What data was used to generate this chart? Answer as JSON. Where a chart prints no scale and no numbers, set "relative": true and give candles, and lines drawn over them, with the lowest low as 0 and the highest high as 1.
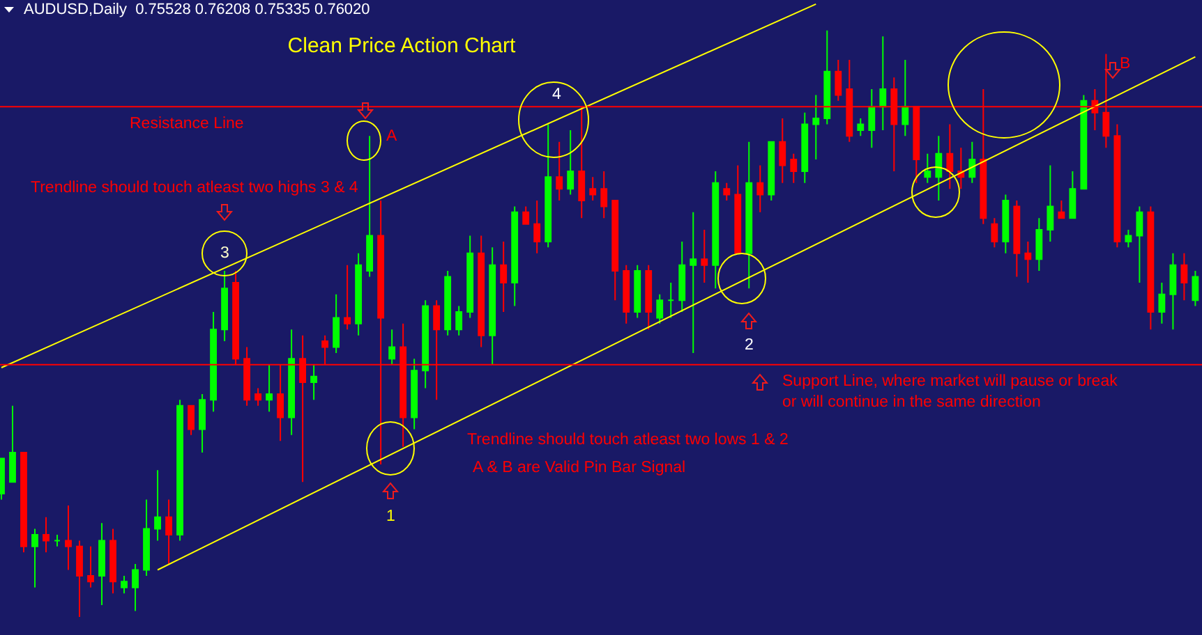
{
  "chart_data": {
    "type": "candlestick",
    "relative": true,
    "title": "Clean Price Action Chart",
    "subtitle": "AUDUSD,Daily  0.75528 0.76208 0.75335 0.76020",
    "annotations": [
      "Trendline should touch atleast two highs 3 & 4",
      "Trendline should touch atleast two lows 1 & 2",
      "A & B are Valid Pin Bar Signal",
      "3",
      "4",
      "A",
      "B",
      "1",
      "2"
    ],
    "colors": [
      "#00ff00",
      "#00ff00",
      "#ff0000",
      "#00ff00",
      "#ff0000",
      "#00ff00",
      "#ff0000",
      "#ff0000",
      "#ff0000",
      "#00ff00",
      "#ff0000",
      "#00ff00",
      "#00ff00",
      "#00ff00",
      "#00ff00",
      "#ff0000",
      "#00ff00",
      "#ff0000",
      "#00ff00",
      "#00ff00",
      "#00ff00",
      "#ff0000",
      "#ff0000",
      "#ff0000",
      "#00ff00",
      "#ff0000",
      "#00ff00",
      "#ff0000",
      "#00ff00",
      "#ff0000",
      "#00ff00",
      "#ff0000",
      "#00ff00",
      "#00ff00",
      "#ff0000",
      "#00ff00",
      "#ff0000",
      "#00ff00",
      "#00ff00",
      "#ff0000",
      "#00ff00",
      "#00ff00",
      "#00ff00",
      "#ff0000",
      "#00ff00",
      "#ff0000",
      "#00ff00",
      "#ff0000",
      "#ff0000",
      "#00ff00",
      "#ff0000",
      "#00ff00",
      "#ff0000",
      "#ff0000",
      "#ff0000",
      "#ff0000",
      "#ff0000",
      "#00ff00",
      "#ff0000",
      "#00ff00",
      "#00ff00",
      "#00ff00",
      "#00ff00",
      "#ff0000",
      "#00ff00",
      "#ff0000",
      "#ff0000",
      "#00ff00",
      "#ff0000",
      "#00ff00",
      "#ff0000",
      "#ff0000",
      "#00ff00",
      "#00ff00",
      "#00ff00",
      "#ff0000",
      "#ff0000",
      "#00ff00",
      "#00ff00",
      "#00ff00",
      "#ff0000",
      "#00ff00",
      "#ff0000",
      "#00ff00",
      "#00ff00",
      "#ff0000",
      "#ff0000",
      "#00ff00",
      "#ff0000",
      "#ff0000",
      "#00ff00",
      "#ff0000",
      "#ff0000",
      "#00ff00",
      "#00ff00",
      "#ff0000",
      "#00ff00",
      "#00ff00",
      "#ff0000",
      "#ff0000",
      "#ff0000",
      "#00ff00",
      "#00ff00",
      "#ff0000",
      "#00ff00",
      "#00ff00",
      "#ff0000",
      "#00ff00"
    ],
    "categories": [
      null,
      null,
      null,
      null,
      null,
      null,
      null,
      null,
      null,
      null,
      null,
      null,
      null,
      null,
      null,
      null,
      null,
      null,
      null,
      null,
      null,
      null,
      null,
      null,
      null,
      null,
      null,
      null,
      null,
      null,
      null,
      null,
      null,
      null,
      null,
      null,
      null,
      null,
      null,
      null,
      null,
      null,
      null,
      null,
      null,
      null,
      null,
      null,
      null,
      null,
      null,
      null,
      null,
      null,
      null,
      null,
      null,
      null,
      null,
      null,
      null,
      null,
      null,
      null,
      null,
      null,
      null,
      null,
      null,
      null,
      null,
      null,
      null,
      null,
      null,
      null,
      null,
      null,
      null,
      null,
      null,
      null,
      null,
      null,
      null,
      null,
      null,
      null,
      null,
      null,
      null,
      null,
      null,
      null,
      null,
      null,
      null,
      null,
      null,
      null,
      null,
      null,
      null,
      null,
      null,
      null,
      null,
      null
    ],
    "ohlc": [
      [
        0.21,
        0.27,
        0.2,
        0.27
      ],
      [
        0.23,
        0.36,
        0.23,
        0.28
      ],
      [
        0.28,
        0.28,
        0.11,
        0.12
      ],
      [
        0.12,
        0.15,
        0.05,
        0.14
      ],
      [
        0.14,
        0.17,
        0.11,
        0.13
      ],
      [
        0.13,
        0.14,
        0.12,
        0.13
      ],
      [
        0.13,
        0.19,
        0.08,
        0.12
      ],
      [
        0.12,
        0.13,
        0,
        0.07
      ],
      [
        0.07,
        0.12,
        0.05,
        0.06
      ],
      [
        0.07,
        0.16,
        0.02,
        0.13
      ],
      [
        0.13,
        0.15,
        0.04,
        0.06
      ],
      [
        0.05,
        0.07,
        0.04,
        0.06
      ],
      [
        0.05,
        0.09,
        0.01,
        0.08
      ],
      [
        0.08,
        0.2,
        0.07,
        0.15
      ],
      [
        0.15,
        0.25,
        0.13,
        0.17
      ],
      [
        0.17,
        0.2,
        0.09,
        0.14
      ],
      [
        0.14,
        0.37,
        0.13,
        0.36
      ],
      [
        0.36,
        0.36,
        0.31,
        0.32
      ],
      [
        0.32,
        0.38,
        0.28,
        0.37
      ],
      [
        0.37,
        0.52,
        0.35,
        0.49
      ],
      [
        0.49,
        0.59,
        0.47,
        0.56
      ],
      [
        0.57,
        0.59,
        0.43,
        0.44
      ],
      [
        0.44,
        0.46,
        0.36,
        0.37
      ],
      [
        0.38,
        0.39,
        0.36,
        0.37
      ],
      [
        0.37,
        0.43,
        0.35,
        0.38
      ],
      [
        0.38,
        0.43,
        0.3,
        0.34
      ],
      [
        0.34,
        0.49,
        0.31,
        0.44
      ],
      [
        0.44,
        0.48,
        0.23,
        0.4
      ],
      [
        0.4,
        0.43,
        0.37,
        0.41
      ],
      [
        0.47,
        0.48,
        0.43,
        0.46
      ],
      [
        0.46,
        0.55,
        0.45,
        0.51
      ],
      [
        0.51,
        0.6,
        0.49,
        0.5
      ],
      [
        0.5,
        0.62,
        0.48,
        0.6
      ],
      [
        0.59,
        0.82,
        0.58,
        0.65
      ],
      [
        0.65,
        0.71,
        0.26,
        0.51
      ],
      [
        0.44,
        0.49,
        0.43,
        0.46
      ],
      [
        0.46,
        0.5,
        0.29,
        0.34
      ],
      [
        0.34,
        0.44,
        0.32,
        0.42
      ],
      [
        0.42,
        0.54,
        0.39,
        0.53
      ],
      [
        0.53,
        0.54,
        0.37,
        0.49
      ],
      [
        0.49,
        0.59,
        0.48,
        0.58
      ],
      [
        0.49,
        0.53,
        0.48,
        0.52
      ],
      [
        0.52,
        0.65,
        0.51,
        0.62
      ],
      [
        0.62,
        0.65,
        0.46,
        0.48
      ],
      [
        0.48,
        0.63,
        0.43,
        0.6
      ],
      [
        0.6,
        0.64,
        0.52,
        0.57
      ],
      [
        0.57,
        0.7,
        0.53,
        0.69
      ],
      [
        0.69,
        0.7,
        0.67,
        0.67
      ],
      [
        0.67,
        0.71,
        0.62,
        0.64
      ],
      [
        0.64,
        0.84,
        0.63,
        0.75
      ],
      [
        0.75,
        0.81,
        0.71,
        0.73
      ],
      [
        0.73,
        0.83,
        0.72,
        0.76
      ],
      [
        0.76,
        0.87,
        0.68,
        0.71
      ],
      [
        0.73,
        0.75,
        0.71,
        0.72
      ],
      [
        0.73,
        0.76,
        0.68,
        0.7
      ],
      [
        0.71,
        0.71,
        0.54,
        0.59
      ],
      [
        0.59,
        0.6,
        0.5,
        0.52
      ],
      [
        0.52,
        0.6,
        0.51,
        0.59
      ],
      [
        0.59,
        0.6,
        0.49,
        0.52
      ],
      [
        0.51,
        0.55,
        0.5,
        0.54
      ],
      [
        0.54,
        0.57,
        0.51,
        0.54
      ],
      [
        0.54,
        0.64,
        0.52,
        0.6
      ],
      [
        0.6,
        0.69,
        0.45,
        0.61
      ],
      [
        0.61,
        0.66,
        0.57,
        0.6
      ],
      [
        0.6,
        0.76,
        0.56,
        0.74
      ],
      [
        0.73,
        0.74,
        0.71,
        0.72
      ],
      [
        0.72,
        0.77,
        0.62,
        0.62
      ],
      [
        0.62,
        0.81,
        0.56,
        0.74
      ],
      [
        0.74,
        0.77,
        0.69,
        0.72
      ],
      [
        0.72,
        0.81,
        0.71,
        0.81
      ],
      [
        0.81,
        0.85,
        0.74,
        0.77
      ],
      [
        0.78,
        0.79,
        0.74,
        0.76
      ],
      [
        0.76,
        0.86,
        0.74,
        0.84
      ],
      [
        0.84,
        0.89,
        0.78,
        0.85
      ],
      [
        0.85,
        1,
        0.84,
        0.93
      ],
      [
        0.93,
        0.95,
        0.88,
        0.89
      ],
      [
        0.9,
        0.95,
        0.81,
        0.82
      ],
      [
        0.83,
        0.85,
        0.82,
        0.84
      ],
      [
        0.83,
        0.9,
        0.8,
        0.87
      ],
      [
        0.87,
        0.99,
        0.83,
        0.9
      ],
      [
        0.9,
        0.92,
        0.76,
        0.84
      ],
      [
        0.84,
        0.95,
        0.82,
        0.87
      ],
      [
        0.87,
        0.87,
        0.74,
        0.78
      ],
      [
        0.75,
        0.79,
        0.74,
        0.76
      ],
      [
        0.75,
        0.82,
        0.71,
        0.79
      ],
      [
        0.79,
        0.84,
        0.73,
        0.76
      ],
      [
        0.76,
        0.8,
        0.73,
        0.75
      ],
      [
        0.75,
        0.81,
        0.74,
        0.78
      ],
      [
        0.78,
        0.9,
        0.67,
        0.68
      ],
      [
        0.67,
        0.68,
        0.63,
        0.64
      ],
      [
        0.64,
        0.72,
        0.62,
        0.71
      ],
      [
        0.7,
        0.71,
        0.58,
        0.62
      ],
      [
        0.62,
        0.64,
        0.57,
        0.61
      ],
      [
        0.61,
        0.68,
        0.59,
        0.66
      ],
      [
        0.66,
        0.77,
        0.64,
        0.7
      ],
      [
        0.69,
        0.71,
        0.68,
        0.68
      ],
      [
        0.68,
        0.76,
        0.68,
        0.73
      ],
      [
        0.73,
        0.89,
        0.73,
        0.88
      ],
      [
        0.88,
        0.9,
        0.83,
        0.86
      ],
      [
        0.86,
        0.96,
        0.8,
        0.82
      ],
      [
        0.82,
        0.84,
        0.63,
        0.64
      ],
      [
        0.64,
        0.66,
        0.63,
        0.65
      ],
      [
        0.65,
        0.7,
        0.57,
        0.69
      ],
      [
        0.69,
        0.7,
        0.49,
        0.52
      ],
      [
        0.52,
        0.57,
        0.5,
        0.55
      ],
      [
        0.55,
        0.62,
        0.49,
        0.6
      ],
      [
        0.6,
        0.62,
        0.54,
        0.57
      ],
      [
        0.54,
        0.59,
        0.53,
        0.58
      ]
    ],
    "series": [
      {
        "type": "line",
        "color": "#ffff00",
        "values": [
          0.425,
          null,
          null,
          null,
          null,
          null,
          null,
          null,
          null,
          null,
          null,
          null,
          null,
          null,
          null,
          null,
          null,
          null,
          null,
          null,
          null,
          null,
          null,
          null,
          null,
          null,
          null,
          null,
          null,
          null,
          null,
          null,
          null,
          null,
          null,
          null,
          null,
          null,
          null,
          null,
          null,
          null,
          null,
          null,
          null,
          null,
          null,
          null,
          null,
          null,
          null,
          null,
          null,
          null,
          null,
          null,
          null,
          null,
          null,
          null,
          null,
          null,
          null,
          null,
          null,
          null,
          null,
          null,
          null,
          null,
          null,
          null,
          null,
          1.045,
          null,
          null,
          null,
          null,
          null,
          null,
          null,
          null,
          null,
          null,
          null,
          null,
          null,
          null,
          null,
          null,
          null,
          null,
          null,
          null,
          null,
          null,
          null,
          null,
          null,
          null,
          null,
          null,
          null,
          null,
          null,
          null,
          null,
          null
        ]
      },
      {
        "type": "line",
        "color": "#ffff00",
        "values": [
          null,
          null,
          null,
          null,
          null,
          null,
          null,
          null,
          null,
          null,
          null,
          null,
          null,
          null,
          0.08,
          null,
          null,
          null,
          null,
          null,
          null,
          null,
          null,
          null,
          null,
          null,
          null,
          null,
          null,
          null,
          null,
          null,
          null,
          null,
          null,
          null,
          null,
          null,
          null,
          null,
          null,
          null,
          null,
          null,
          null,
          null,
          null,
          null,
          null,
          null,
          null,
          null,
          null,
          null,
          null,
          null,
          null,
          null,
          null,
          null,
          null,
          null,
          null,
          null,
          null,
          null,
          null,
          null,
          null,
          null,
          null,
          null,
          null,
          null,
          null,
          null,
          null,
          null,
          null,
          null,
          null,
          null,
          null,
          null,
          null,
          null,
          null,
          null,
          null,
          null,
          null,
          null,
          null,
          null,
          null,
          null,
          null,
          null,
          null,
          null,
          null,
          null,
          null,
          null,
          null,
          null,
          null,
          0.955
        ]
      }
    ],
    "ref_lines": [
      {
        "axis": "y",
        "value": 0.87,
        "label": "Resistance Line",
        "color": "#ff0000"
      },
      {
        "axis": "y",
        "value": 0.43,
        "label": "Support Line, where market will pause or break\nor will continue in the same direction",
        "color": "#ff0000"
      }
    ]
  }
}
